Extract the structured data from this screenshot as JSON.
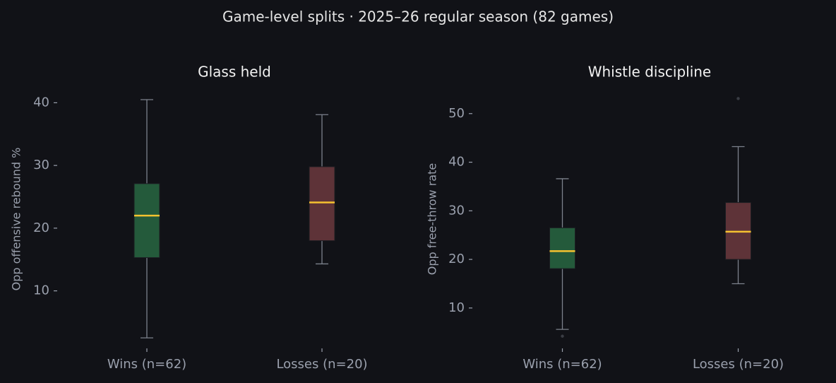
{
  "title": "Game-level splits · 2025–26 regular season (82 games)",
  "chart_data": [
    {
      "type": "box",
      "title": "Glass held",
      "y_label": "Opp offensive rebound %",
      "categories": [
        "Wins (n=62)",
        "Losses (n=20)"
      ],
      "ylim": [
        0.6,
        42.3
      ],
      "yticks": [
        10,
        20,
        30,
        40
      ],
      "median_color": "#f5c230",
      "whisker_color": "#7c818c",
      "boxes": [
        {
          "color": "#245a3b",
          "whislo": 2.5,
          "q1": 15.3,
          "med": 22.0,
          "q3": 27.1,
          "whishi": 40.5,
          "fliers": []
        },
        {
          "color": "#5e3338",
          "whislo": 14.3,
          "q1": 18.0,
          "med": 24.1,
          "q3": 29.8,
          "whishi": 38.1,
          "fliers": []
        }
      ]
    },
    {
      "type": "box",
      "title": "Whistle discipline",
      "y_label": "Opp free-throw rate",
      "categories": [
        "Wins (n=62)",
        "Losses (n=20)"
      ],
      "ylim": [
        1.4,
        55.2
      ],
      "yticks": [
        10,
        20,
        30,
        40,
        50
      ],
      "median_color": "#f5c230",
      "whisker_color": "#7c818c",
      "boxes": [
        {
          "color": "#245a3b",
          "whislo": 5.6,
          "q1": 18.1,
          "med": 21.7,
          "q3": 26.5,
          "whishi": 36.6,
          "fliers": [
            4.2
          ]
        },
        {
          "color": "#5e3338",
          "whislo": 15.0,
          "q1": 20.0,
          "med": 25.7,
          "q3": 31.7,
          "whishi": 43.2,
          "fliers": [
            53.1
          ]
        }
      ]
    }
  ]
}
